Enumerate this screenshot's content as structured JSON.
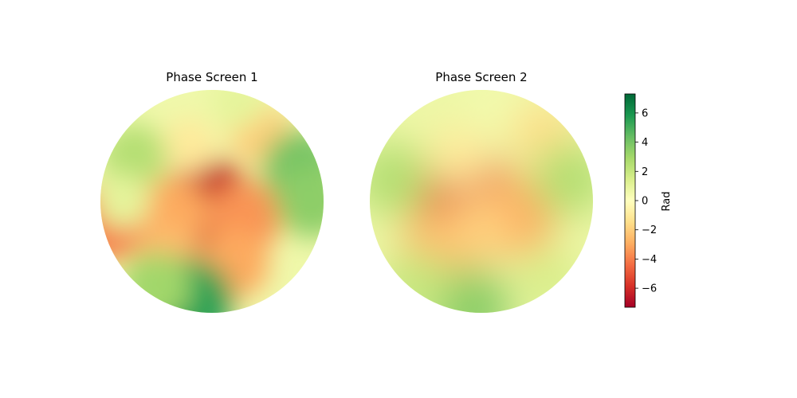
{
  "chart_data": {
    "type": "heatmap",
    "colormap": "RdYlGn",
    "panels": [
      {
        "title": "Phase Screen 1",
        "features": [
          {
            "x": 0.48,
            "y": 0.52,
            "value": -6.5
          },
          {
            "x": 0.33,
            "y": 0.55,
            "value": -3.0
          },
          {
            "x": 0.65,
            "y": 0.57,
            "value": -3.5
          },
          {
            "x": 0.6,
            "y": 0.78,
            "value": -3.0
          },
          {
            "x": 0.3,
            "y": 0.75,
            "value": -2.5
          },
          {
            "x": 0.72,
            "y": 0.2,
            "value": -2.0
          },
          {
            "x": 0.4,
            "y": 0.25,
            "value": -1.0
          },
          {
            "x": 0.02,
            "y": 0.6,
            "value": -4.0
          },
          {
            "x": 0.9,
            "y": 0.35,
            "value": 4.0
          },
          {
            "x": 0.95,
            "y": 0.5,
            "value": 3.5
          },
          {
            "x": 0.15,
            "y": 0.3,
            "value": 2.5
          },
          {
            "x": 0.4,
            "y": 0.95,
            "value": 5.5
          },
          {
            "x": 0.25,
            "y": 0.88,
            "value": 3.0
          },
          {
            "x": 0.62,
            "y": 0.05,
            "value": 1.0
          },
          {
            "x": 0.1,
            "y": 0.5,
            "value": 1.0
          }
        ]
      },
      {
        "title": "Phase Screen 2",
        "features": [
          {
            "x": 0.42,
            "y": 0.48,
            "value": -5.5
          },
          {
            "x": 0.65,
            "y": 0.57,
            "value": -3.0
          },
          {
            "x": 0.3,
            "y": 0.7,
            "value": -2.5
          },
          {
            "x": 0.5,
            "y": 0.62,
            "value": -2.0
          },
          {
            "x": 0.4,
            "y": 0.3,
            "value": -1.0
          },
          {
            "x": 0.78,
            "y": 0.2,
            "value": -1.5
          },
          {
            "x": 0.55,
            "y": 0.05,
            "value": 0.5
          },
          {
            "x": 0.1,
            "y": 0.4,
            "value": 2.5
          },
          {
            "x": 0.9,
            "y": 0.4,
            "value": 2.5
          },
          {
            "x": 0.45,
            "y": 0.98,
            "value": 3.5
          },
          {
            "x": 0.2,
            "y": 0.88,
            "value": 2.0
          },
          {
            "x": 0.8,
            "y": 0.85,
            "value": 1.5
          }
        ]
      }
    ],
    "colorbar": {
      "label": "Rad",
      "min": -7.3,
      "max": 7.3,
      "ticks": [
        -6,
        -4,
        -2,
        0,
        2,
        4,
        6
      ],
      "tick_labels": [
        "−6",
        "−4",
        "−2",
        "0",
        "2",
        "4",
        "6"
      ]
    },
    "grid": false,
    "axes_visible": false
  }
}
